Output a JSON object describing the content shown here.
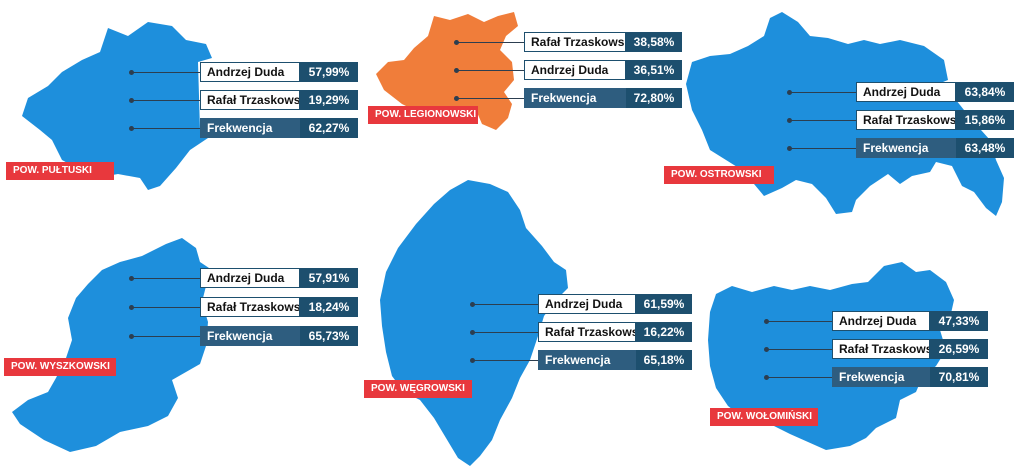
{
  "labels": {
    "candidate1": "Andrzej Duda",
    "candidate2": "Rafał Trzaskowski",
    "turnout": "Frekwencja"
  },
  "colors": {
    "district": "#1e8fdc",
    "highlighted": "#f07d3a",
    "badge": "#e8383d",
    "value_box": "#1d4f6e",
    "turnout_box": "#2e5d7f"
  },
  "districts": [
    {
      "name": "POW. PUŁTUSKI",
      "highlighted": false,
      "results": [
        {
          "label": "Andrzej Duda",
          "value": "57,99%"
        },
        {
          "label": "Rafał Trzaskowski",
          "value": "19,29%"
        },
        {
          "label": "Frekwencja",
          "value": "62,27%"
        }
      ]
    },
    {
      "name": "POW. LEGIONOWSKI",
      "highlighted": true,
      "results": [
        {
          "label": "Rafał Trzaskowski",
          "value": "38,58%"
        },
        {
          "label": "Andrzej Duda",
          "value": "36,51%"
        },
        {
          "label": "Frekwencja",
          "value": "72,80%"
        }
      ]
    },
    {
      "name": "POW. OSTROWSKI",
      "highlighted": false,
      "results": [
        {
          "label": "Andrzej Duda",
          "value": "63,84%"
        },
        {
          "label": "Rafał Trzaskowski",
          "value": "15,86%"
        },
        {
          "label": "Frekwencja",
          "value": "63,48%"
        }
      ]
    },
    {
      "name": "POW. WYSZKOWSKI",
      "highlighted": false,
      "results": [
        {
          "label": "Andrzej Duda",
          "value": "57,91%"
        },
        {
          "label": "Rafał Trzaskowski",
          "value": "18,24%"
        },
        {
          "label": "Frekwencja",
          "value": "65,73%"
        }
      ]
    },
    {
      "name": "POW. WĘGROWSKI",
      "highlighted": false,
      "results": [
        {
          "label": "Andrzej Duda",
          "value": "61,59%"
        },
        {
          "label": "Rafał Trzaskowski",
          "value": "16,22%"
        },
        {
          "label": "Frekwencja",
          "value": "65,18%"
        }
      ]
    },
    {
      "name": "POW. WOŁOMIŃSKI",
      "highlighted": false,
      "results": [
        {
          "label": "Andrzej Duda",
          "value": "47,33%"
        },
        {
          "label": "Rafał Trzaskowski",
          "value": "26,59%"
        },
        {
          "label": "Frekwencja",
          "value": "70,81%"
        }
      ]
    }
  ]
}
